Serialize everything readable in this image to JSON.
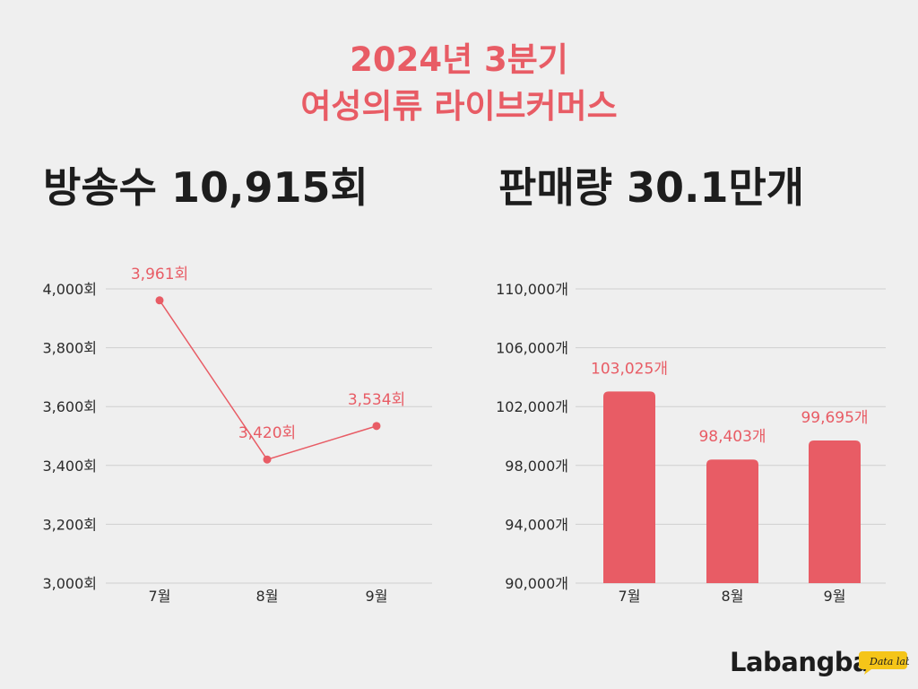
{
  "header": {
    "title_line1": "2024년 3분기",
    "title_line2": "여성의류 라이브커머스"
  },
  "stats": {
    "broadcasts": "방송수 10,915회",
    "sales": "판매량 30.1만개"
  },
  "colors": {
    "accent": "#e85c65",
    "text": "#1d1d1d",
    "background": "#efefef",
    "grid": "#cfcfcf"
  },
  "chart_data": [
    {
      "type": "line",
      "categories": [
        "7월",
        "8월",
        "9월"
      ],
      "values": [
        3961,
        3420,
        3534
      ],
      "data_labels": [
        "3,961회",
        "3,420회",
        "3,534회"
      ],
      "ylim": [
        3000,
        4000
      ],
      "yticks": [
        3000,
        3200,
        3400,
        3600,
        3800,
        4000
      ],
      "ytick_labels": [
        "3,000회",
        "3,200회",
        "3,400회",
        "3,600회",
        "3,800회",
        "4,000회"
      ],
      "grid": true
    },
    {
      "type": "bar",
      "categories": [
        "7월",
        "8월",
        "9월"
      ],
      "values": [
        103025,
        98403,
        99695
      ],
      "data_labels": [
        "103,025개",
        "98,403개",
        "99,695개"
      ],
      "ylim": [
        90000,
        110000
      ],
      "yticks": [
        90000,
        94000,
        98000,
        102000,
        106000,
        110000
      ],
      "ytick_labels": [
        "90,000개",
        "94,000개",
        "98,000개",
        "102,000개",
        "106,000개",
        "110,000개"
      ],
      "grid": true
    }
  ],
  "logo": {
    "name": "Labangba",
    "badge": "Data lab"
  }
}
